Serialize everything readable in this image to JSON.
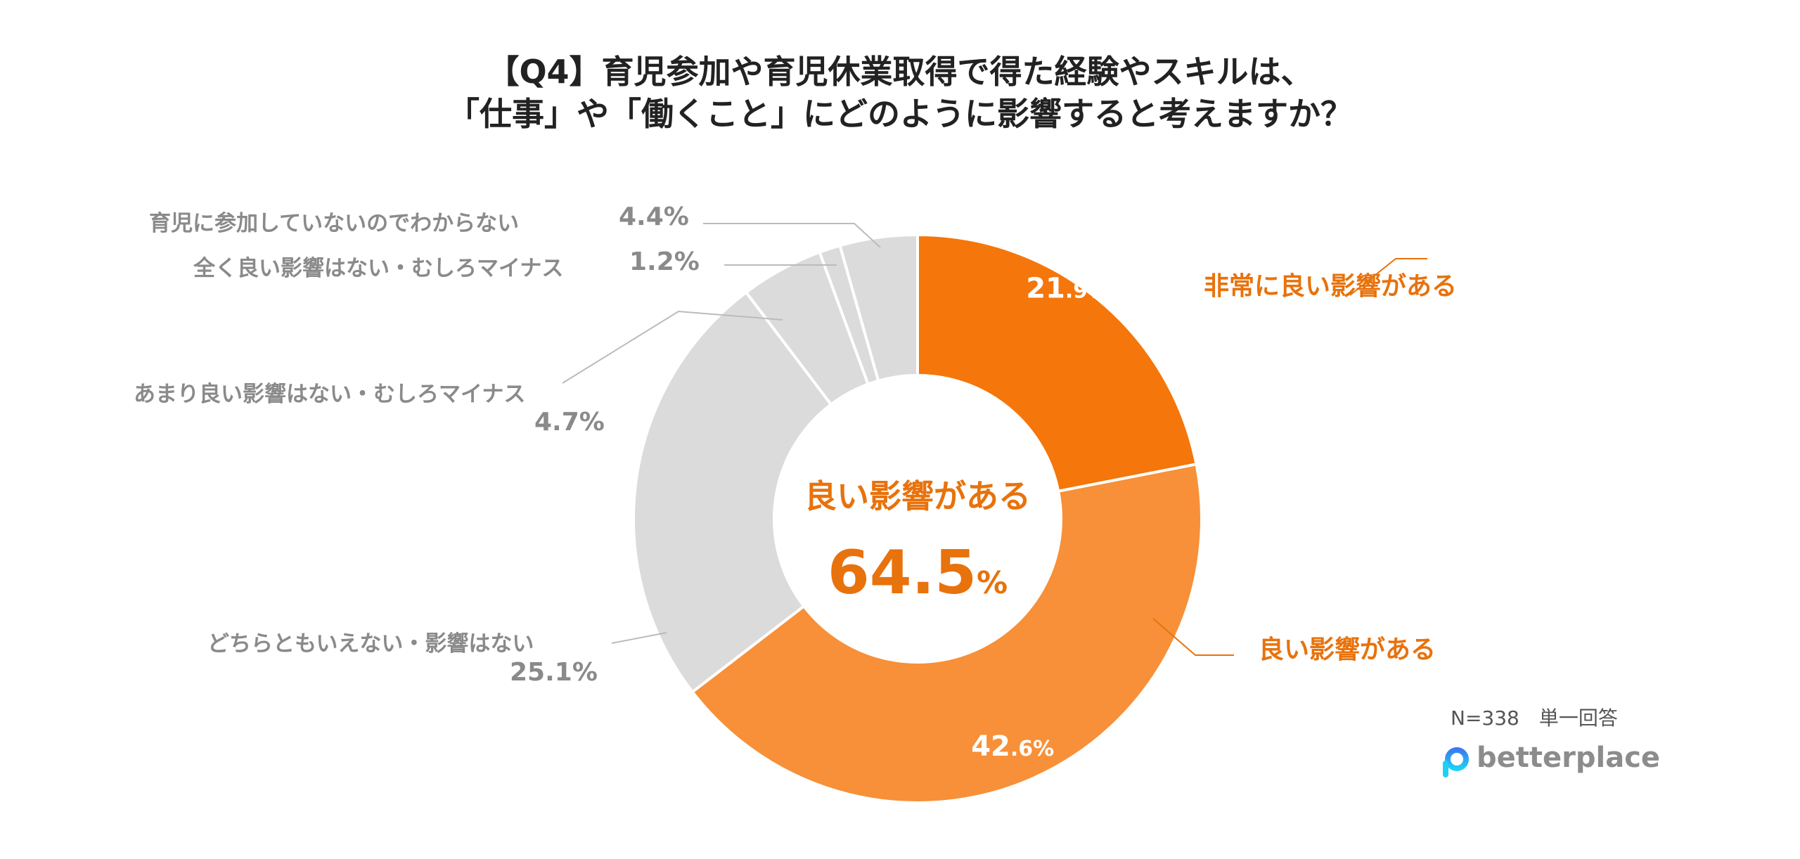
{
  "title": {
    "line1": "【Q4】育児参加や育児休業取得で得た経験やスキルは、",
    "line2": "「仕事」や「働くこと」にどのように影響すると考えますか？"
  },
  "chart_data": {
    "type": "pie",
    "subtype": "donut",
    "title": "【Q4】育児参加や育児休業取得で得た経験やスキルは、「仕事」や「働くこと」にどのように影響すると考えますか？",
    "slices": [
      {
        "label": "非常に良い影響がある",
        "value": 21.9,
        "value_label": "21.9%",
        "color": "#f5760a"
      },
      {
        "label": "良い影響がある",
        "value": 42.6,
        "value_label": "42.6%",
        "color": "#f79038"
      },
      {
        "label": "どちらともいえない・影響はない",
        "value": 25.1,
        "value_label": "25.1%",
        "color": "#dcdbdb"
      },
      {
        "label": "あまり良い影響はない・むしろマイナス",
        "value": 4.7,
        "value_label": "4.7%",
        "color": "#dcdbdb"
      },
      {
        "label": "全く良い影響はない・むしろマイナス",
        "value": 1.2,
        "value_label": "1.2%",
        "color": "#dcdbdb"
      },
      {
        "label": "育児に参加していないのでわからない",
        "value": 4.4,
        "value_label": "4.4%",
        "color": "#dcdbdb"
      }
    ],
    "center_label": "良い影響がある",
    "center_value": "64.5",
    "center_unit": "%"
  },
  "note": "N=338　単一回答",
  "logo": "betterplace"
}
